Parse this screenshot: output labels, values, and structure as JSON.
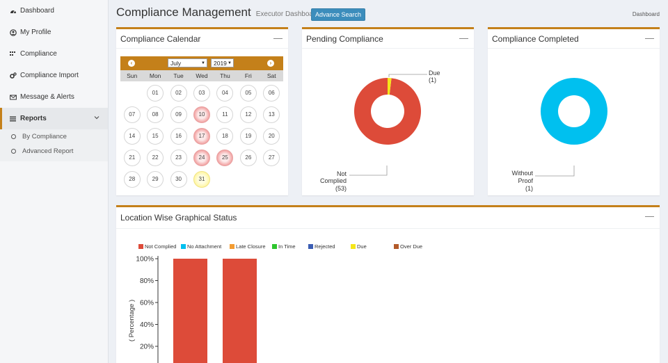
{
  "sidebar": {
    "items": [
      {
        "label": "Dashboard"
      },
      {
        "label": "My Profile"
      },
      {
        "label": "Compliance"
      },
      {
        "label": "Compliance Import"
      },
      {
        "label": "Message & Alerts"
      },
      {
        "label": "Reports"
      }
    ],
    "sub_items": [
      {
        "label": "By Compliance"
      },
      {
        "label": "Advanced Report"
      }
    ]
  },
  "header": {
    "title": "Compliance Management",
    "subtitle": "Executor Dashboard",
    "advance_search": "Advance Search",
    "breadcrumb": "Dashboard"
  },
  "calendar": {
    "title": "Compliance Calendar",
    "month": "July",
    "year": "2019",
    "weekdays": [
      "Sun",
      "Mon",
      "Tue",
      "Wed",
      "Thu",
      "Fri",
      "Sat"
    ],
    "days": [
      "",
      "01",
      "02",
      "03",
      "04",
      "05",
      "06",
      "07",
      "08",
      "09",
      "10",
      "11",
      "12",
      "13",
      "14",
      "15",
      "16",
      "17",
      "18",
      "19",
      "20",
      "21",
      "22",
      "23",
      "24",
      "25",
      "26",
      "27",
      "28",
      "29",
      "30",
      "31"
    ],
    "highlight_red": [
      "10",
      "17",
      "24",
      "25"
    ],
    "highlight_yellow": [
      "31"
    ],
    "colors": {
      "header": "#c4801a",
      "red": "#e57373",
      "yellow": "#fff59d"
    }
  },
  "pending": {
    "title": "Pending Compliance",
    "segments": [
      {
        "label_lines": [
          "Not",
          "Complied"
        ],
        "count": "(53)",
        "value": 53,
        "color": "#dd4b39"
      },
      {
        "label_lines": [
          "Due"
        ],
        "count": "(1)",
        "value": 1,
        "color": "#f5e61a"
      }
    ]
  },
  "completed": {
    "title": "Compliance Completed",
    "segments": [
      {
        "label_lines": [
          "Without",
          "Proof"
        ],
        "count": "(1)",
        "value": 1,
        "color": "#00c0ef"
      }
    ]
  },
  "location": {
    "title": "Location Wise Graphical Status",
    "legend": [
      {
        "label": "Not Complied",
        "color": "#dd4b39"
      },
      {
        "label": "No Attachment",
        "color": "#00c0ef"
      },
      {
        "label": "Late Closure",
        "color": "#f39c32"
      },
      {
        "label": "In Time",
        "color": "#2ec62e"
      },
      {
        "label": "Rejected",
        "color": "#3b5db3"
      },
      {
        "label": "Due",
        "color": "#f5e61a"
      },
      {
        "label": "Over Due",
        "color": "#b35a2a"
      }
    ]
  },
  "chart_data": {
    "type": "bar",
    "ylabel": "( Percentage )",
    "yticks": [
      "100%",
      "80%",
      "60%",
      "40%",
      "20%"
    ],
    "ylim": [
      0,
      100
    ],
    "series": [
      {
        "name": "Not Complied",
        "values": [
          100,
          100
        ]
      }
    ]
  }
}
